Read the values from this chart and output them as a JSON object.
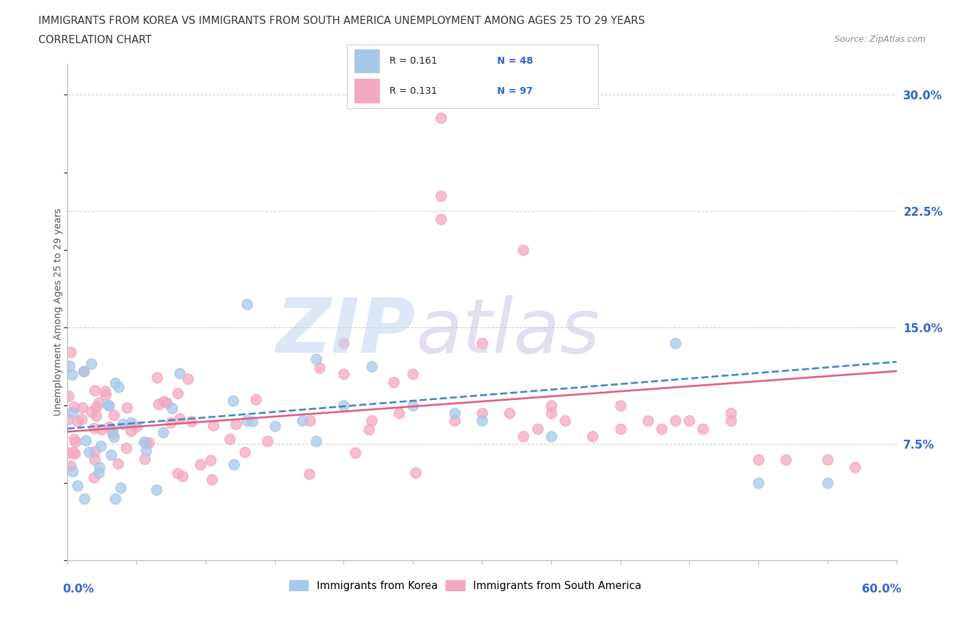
{
  "title_line1": "IMMIGRANTS FROM KOREA VS IMMIGRANTS FROM SOUTH AMERICA UNEMPLOYMENT AMONG AGES 25 TO 29 YEARS",
  "title_line2": "CORRELATION CHART",
  "source_text": "Source: ZipAtlas.com",
  "ylabel": "Unemployment Among Ages 25 to 29 years",
  "yticks": [
    0.075,
    0.15,
    0.225,
    0.3
  ],
  "ytick_labels": [
    "7.5%",
    "15.0%",
    "22.5%",
    "30.0%"
  ],
  "xlim": [
    0.0,
    0.6
  ],
  "ylim": [
    0.0,
    0.32
  ],
  "korea_color": "#a8c8e8",
  "south_america_color": "#f4a8c0",
  "korea_line_color": "#4488cc",
  "south_america_line_color": "#e06080",
  "korea_R": 0.161,
  "korea_N": 48,
  "south_america_R": 0.131,
  "south_america_N": 97,
  "legend_label_korea": "Immigrants from Korea",
  "legend_label_sa": "Immigrants from South America",
  "watermark_zip_color": "#c8d8f0",
  "watermark_atlas_color": "#d0c8e8",
  "grid_color": "#cccccc",
  "axis_label_color": "#3366cc",
  "title_color": "#333333",
  "source_color": "#888888"
}
